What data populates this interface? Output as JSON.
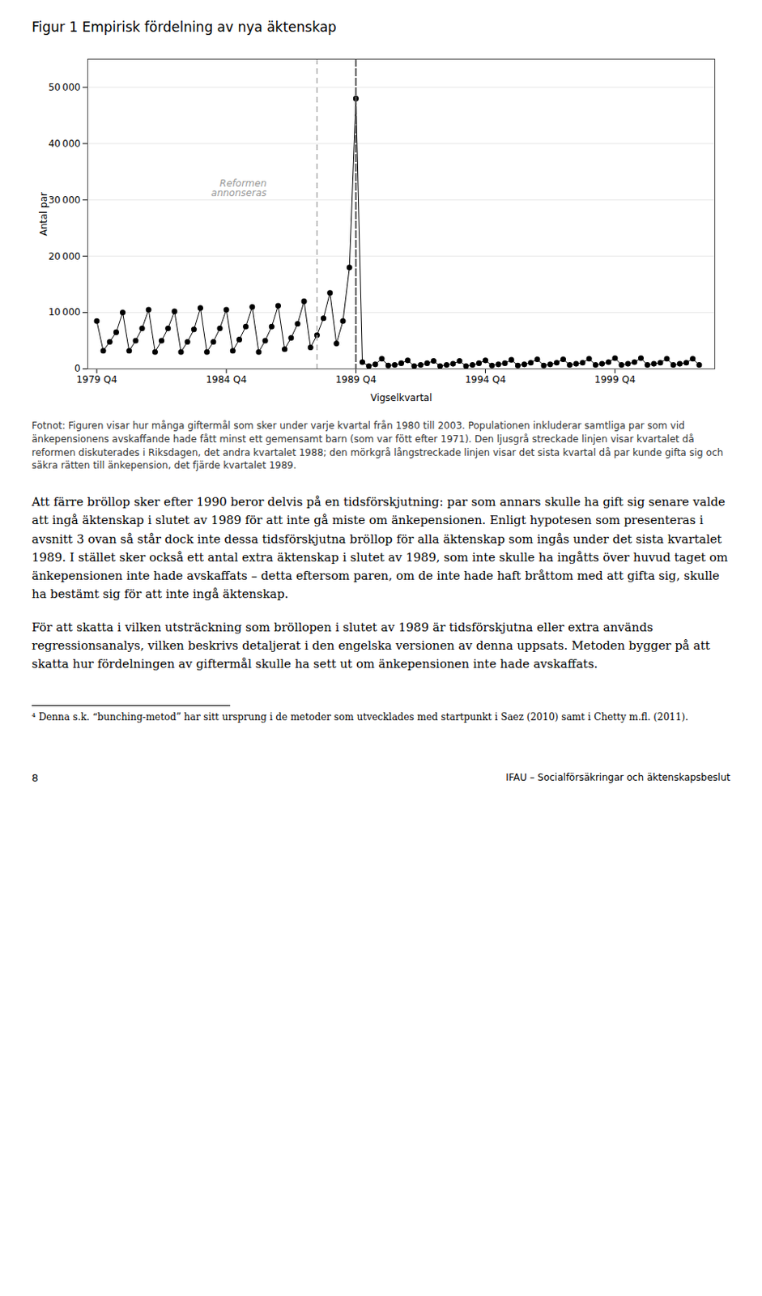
{
  "chart_data": {
    "type": "line",
    "title": "Figur 1 Empirisk fördelning av nya äktenskap",
    "xlabel": "Vigselkvartal",
    "ylabel": "Antal par",
    "x": [
      1979.75,
      1980.0,
      1980.25,
      1980.5,
      1980.75,
      1981.0,
      1981.25,
      1981.5,
      1981.75,
      1982.0,
      1982.25,
      1982.5,
      1982.75,
      1983.0,
      1983.25,
      1983.5,
      1983.75,
      1984.0,
      1984.25,
      1984.5,
      1984.75,
      1985.0,
      1985.25,
      1985.5,
      1985.75,
      1986.0,
      1986.25,
      1986.5,
      1986.75,
      1987.0,
      1987.25,
      1987.5,
      1987.75,
      1988.0,
      1988.25,
      1988.5,
      1988.75,
      1989.0,
      1989.25,
      1989.5,
      1989.75,
      1990.0,
      1990.25,
      1990.5,
      1990.75,
      1991.0,
      1991.25,
      1991.5,
      1991.75,
      1992.0,
      1992.25,
      1992.5,
      1992.75,
      1993.0,
      1993.25,
      1993.5,
      1993.75,
      1994.0,
      1994.25,
      1994.5,
      1994.75,
      1995.0,
      1995.25,
      1995.5,
      1995.75,
      1996.0,
      1996.25,
      1996.5,
      1996.75,
      1997.0,
      1997.25,
      1997.5,
      1997.75,
      1998.0,
      1998.25,
      1998.5,
      1998.75,
      1999.0,
      1999.25,
      1999.5,
      1999.75,
      2000.0,
      2000.25,
      2000.5,
      2000.75,
      2001.0,
      2001.25,
      2001.5,
      2001.75,
      2002.0,
      2002.25,
      2002.5,
      2002.75,
      2003.0
    ],
    "values": [
      8500,
      3200,
      4800,
      6500,
      10000,
      3200,
      5000,
      7200,
      10500,
      3000,
      5000,
      7200,
      10200,
      3000,
      4800,
      7000,
      10800,
      3000,
      4800,
      7200,
      10500,
      3200,
      5200,
      7500,
      11000,
      3000,
      5000,
      7500,
      11200,
      3500,
      5500,
      8000,
      12000,
      3800,
      6000,
      9000,
      13500,
      4500,
      8500,
      18000,
      48000,
      1200,
      500,
      800,
      1800,
      600,
      700,
      1000,
      1500,
      500,
      700,
      1000,
      1400,
      500,
      700,
      900,
      1400,
      500,
      700,
      1000,
      1500,
      600,
      800,
      1000,
      1600,
      600,
      800,
      1100,
      1700,
      600,
      800,
      1100,
      1700,
      700,
      900,
      1100,
      1800,
      700,
      900,
      1200,
      1900,
      700,
      900,
      1200,
      1900,
      700,
      900,
      1100,
      1800,
      700,
      900,
      1100,
      1800,
      700
    ],
    "color": "#000000",
    "marker": "circle",
    "xlim": [
      1979.4,
      2003.6
    ],
    "xticks": [
      {
        "value": 1979.75,
        "label": "1979 Q4"
      },
      {
        "value": 1984.75,
        "label": "1984 Q4"
      },
      {
        "value": 1989.75,
        "label": "1989 Q4"
      },
      {
        "value": 1994.75,
        "label": "1994 Q4"
      },
      {
        "value": 1999.75,
        "label": "1999 Q4"
      }
    ],
    "ylim": [
      0,
      55000
    ],
    "yticks": [
      0,
      {
        "value": 10000,
        "label": "10 000"
      },
      {
        "value": 20000,
        "label": "20 000"
      },
      {
        "value": 30000,
        "label": "30 000"
      },
      {
        "value": 40000,
        "label": "40 000"
      },
      {
        "value": 50000,
        "label": "50 000"
      }
    ],
    "grid": true,
    "reference_lines": [
      {
        "x": 1988.25,
        "color": "#aaaaaa",
        "line_style": "dashed"
      },
      {
        "x": 1989.75,
        "color": "#555555",
        "line_style": "longdashed"
      }
    ],
    "annotations": [
      {
        "text": "Reformen\nannonseras",
        "x": 1986.3,
        "y": 32000
      }
    ]
  },
  "caption": "Fotnot: Figuren visar hur många giftermål som sker under varje kvartal från 1980 till 2003. Populationen inkluderar samtliga par som vid änkepensionens avskaffande hade fått minst ett gemensamt barn (som var fött efter 1971). Den ljusgrå streckade linjen visar kvartalet då reformen diskuterades i Riksdagen, det andra kvartalet 1988; den mörkgrå långstreckade linjen visar det sista kvartal då par kunde gifta sig och säkra rätten till änkepension, det fjärde kvartalet 1989.",
  "body": [
    "Att färre bröllop sker efter 1990 beror delvis på en tidsförskjutning: par som annars skulle ha gift sig senare valde att ingå äktenskap i slutet av 1989 för att inte gå miste om änkepensionen. Enligt hypotesen som presenteras i avsnitt 3 ovan så står dock inte dessa tidsförskjutna bröllop för alla äktenskap som ingås under det sista kvartalet 1989. I stället sker också ett antal extra äktenskap i slutet av 1989, som inte skulle ha ingåtts över huvud taget om änkepensionen inte hade avskaffats – detta eftersom paren, om de inte hade haft bråttom med att gifta sig, skulle ha bestämt sig för att inte ingå äktenskap.",
    "För att skatta i vilken utsträckning som bröllopen i slutet av 1989 är tidsförskjutna eller extra används regressionsanalys, vilken beskrivs detaljerat i den engelska versionen av denna uppsats. Metoden bygger på att skatta hur fördelningen av giftermål skulle ha sett ut om änkepensionen inte hade avskaffats."
  ],
  "footnote": "⁴ Denna s.k. “bunching-metod” har sitt ursprung i de metoder som utvecklades med startpunkt i Saez (2010) samt i Chetty m.fl. (2011).",
  "page_number": "8",
  "institution": "IFAU – Socialförsäkringar och äktenskapsbeslut"
}
